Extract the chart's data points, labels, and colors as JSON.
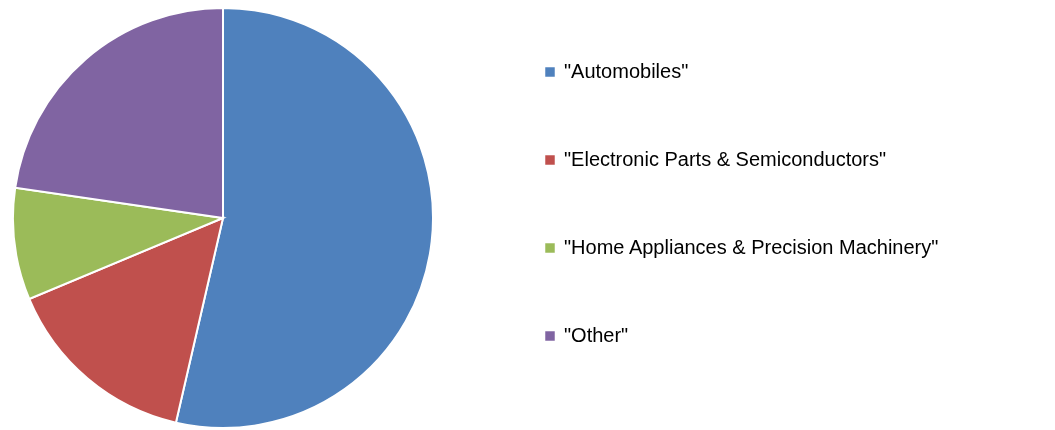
{
  "chart_data": {
    "type": "pie",
    "categories": [
      "\"Automobiles\"",
      "\"Electronic Parts & Semiconductors\"",
      "\"Home Appliances & Precision Machinery\"",
      "\"Other\""
    ],
    "values": [
      53.6,
      15.1,
      8.6,
      22.7
    ],
    "colors": [
      "#4f81bd",
      "#c0504d",
      "#9bbb59",
      "#8064a2"
    ],
    "legend": "right"
  }
}
